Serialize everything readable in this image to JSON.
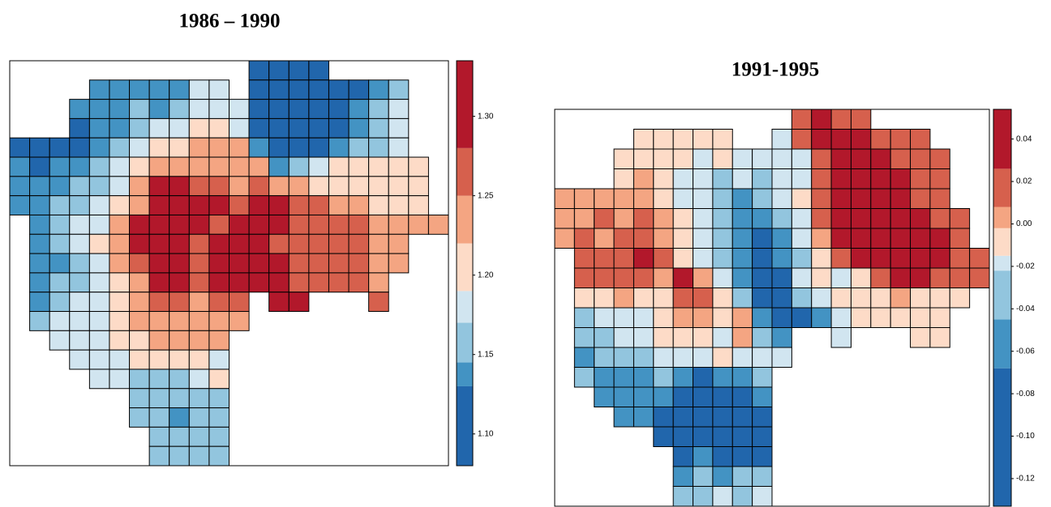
{
  "chart_data": [
    {
      "type": "raster",
      "title": "1986 – 1990",
      "breaks": [
        1.08,
        1.13,
        1.145,
        1.17,
        1.19,
        1.22,
        1.25,
        1.28,
        1.335
      ],
      "colors": [
        "#2166ac",
        "#4393c3",
        "#92c5de",
        "#d1e5f0",
        "#fddbc7",
        "#f4a582",
        "#d6604d",
        "#b2182b"
      ],
      "ticks": [
        {
          "value": 1.1,
          "label": "1.10"
        },
        1.15,
        {
          "value": 1.2,
          "label": "1.20"
        },
        1.25,
        {
          "value": 1.3,
          "label": "1.30"
        }
      ],
      "cells": [
        [
          null,
          null,
          null,
          null,
          null,
          null,
          null,
          null,
          null,
          null,
          null,
          null,
          0,
          0,
          0,
          0,
          null,
          null,
          null,
          null,
          null,
          null
        ],
        [
          null,
          null,
          null,
          null,
          1,
          1,
          1,
          1,
          1,
          3,
          3,
          null,
          0,
          0,
          0,
          0,
          0,
          0,
          1,
          2,
          null,
          null
        ],
        [
          null,
          null,
          null,
          1,
          1,
          1,
          2,
          1,
          2,
          3,
          3,
          3,
          0,
          0,
          0,
          0,
          0,
          1,
          2,
          3,
          null,
          null
        ],
        [
          null,
          null,
          null,
          0,
          1,
          1,
          2,
          3,
          3,
          4,
          4,
          3,
          0,
          0,
          0,
          0,
          0,
          1,
          2,
          3,
          null,
          null
        ],
        [
          0,
          0,
          0,
          0,
          1,
          2,
          3,
          4,
          4,
          5,
          5,
          5,
          1,
          0,
          0,
          0,
          1,
          2,
          2,
          3,
          null,
          null
        ],
        [
          1,
          0,
          1,
          1,
          2,
          3,
          4,
          5,
          5,
          5,
          5,
          5,
          5,
          1,
          2,
          3,
          4,
          4,
          4,
          4,
          4,
          null
        ],
        [
          1,
          1,
          1,
          2,
          2,
          3,
          5,
          7,
          7,
          6,
          6,
          5,
          6,
          5,
          5,
          4,
          4,
          4,
          4,
          4,
          4,
          null
        ],
        [
          1,
          1,
          2,
          2,
          3,
          4,
          5,
          7,
          7,
          7,
          7,
          6,
          7,
          7,
          6,
          6,
          5,
          5,
          4,
          4,
          4,
          null
        ],
        [
          null,
          1,
          2,
          3,
          3,
          5,
          7,
          7,
          7,
          7,
          6,
          7,
          7,
          7,
          6,
          6,
          6,
          6,
          5,
          5,
          5,
          5
        ],
        [
          null,
          1,
          2,
          3,
          4,
          5,
          7,
          7,
          7,
          6,
          7,
          7,
          7,
          6,
          6,
          6,
          6,
          6,
          5,
          5,
          null,
          null
        ],
        [
          null,
          1,
          1,
          2,
          3,
          5,
          6,
          7,
          7,
          6,
          7,
          7,
          7,
          7,
          6,
          6,
          6,
          6,
          5,
          5,
          null,
          null
        ],
        [
          null,
          1,
          2,
          2,
          3,
          4,
          5,
          7,
          7,
          6,
          7,
          7,
          7,
          7,
          6,
          6,
          6,
          6,
          5,
          null,
          null,
          null
        ],
        [
          null,
          1,
          2,
          3,
          3,
          4,
          5,
          6,
          6,
          5,
          6,
          6,
          null,
          7,
          7,
          null,
          null,
          null,
          6,
          null,
          null,
          null
        ],
        [
          null,
          2,
          3,
          3,
          3,
          4,
          5,
          5,
          5,
          5,
          5,
          5,
          null,
          null,
          null,
          null,
          null,
          null,
          null,
          null,
          null,
          null
        ],
        [
          null,
          null,
          3,
          3,
          3,
          4,
          4,
          5,
          5,
          5,
          5,
          null,
          null,
          null,
          null,
          null,
          null,
          null,
          null,
          null,
          null,
          null
        ],
        [
          null,
          null,
          null,
          3,
          3,
          3,
          4,
          4,
          4,
          4,
          3,
          null,
          null,
          null,
          null,
          null,
          null,
          null,
          null,
          null,
          null,
          null
        ],
        [
          null,
          null,
          null,
          null,
          3,
          3,
          2,
          2,
          2,
          3,
          4,
          null,
          null,
          null,
          null,
          null,
          null,
          null,
          null,
          null,
          null,
          null
        ],
        [
          null,
          null,
          null,
          null,
          null,
          null,
          2,
          2,
          2,
          2,
          2,
          null,
          null,
          null,
          null,
          null,
          null,
          null,
          null,
          null,
          null,
          null
        ],
        [
          null,
          null,
          null,
          null,
          null,
          null,
          2,
          2,
          1,
          2,
          2,
          null,
          null,
          null,
          null,
          null,
          null,
          null,
          null,
          null,
          null,
          null
        ],
        [
          null,
          null,
          null,
          null,
          null,
          null,
          null,
          2,
          2,
          2,
          2,
          null,
          null,
          null,
          null,
          null,
          null,
          null,
          null,
          null,
          null,
          null
        ],
        [
          null,
          null,
          null,
          null,
          null,
          null,
          null,
          2,
          2,
          2,
          2,
          null,
          null,
          null,
          null,
          null,
          null,
          null,
          null,
          null,
          null,
          null
        ]
      ]
    },
    {
      "type": "raster",
      "title": "1991-1995",
      "breaks": [
        -0.133,
        -0.068,
        -0.045,
        -0.022,
        -0.015,
        -0.002,
        0.008,
        0.026,
        0.054
      ],
      "colors": [
        "#2166ac",
        "#4393c3",
        "#92c5de",
        "#d1e5f0",
        "#fddbc7",
        "#f4a582",
        "#d6604d",
        "#b2182b"
      ],
      "ticks": [
        -0.12,
        {
          "value": -0.1,
          "label": "-0.10"
        },
        -0.08,
        -0.06,
        -0.04,
        -0.02,
        {
          "value": 0,
          "label": "0.00"
        },
        0.02,
        0.04
      ],
      "cells": [
        [
          null,
          null,
          null,
          null,
          null,
          null,
          null,
          null,
          null,
          null,
          null,
          null,
          6,
          7,
          6,
          6,
          null,
          null,
          null,
          null,
          null,
          null
        ],
        [
          null,
          null,
          null,
          null,
          4,
          4,
          4,
          4,
          4,
          null,
          null,
          3,
          6,
          7,
          7,
          7,
          6,
          6,
          6,
          null,
          null,
          null
        ],
        [
          null,
          null,
          null,
          4,
          4,
          4,
          4,
          3,
          4,
          3,
          3,
          3,
          3,
          6,
          7,
          7,
          7,
          6,
          6,
          6,
          null,
          null
        ],
        [
          null,
          null,
          null,
          4,
          5,
          4,
          3,
          3,
          2,
          3,
          2,
          3,
          3,
          6,
          7,
          7,
          7,
          7,
          6,
          6,
          null,
          null
        ],
        [
          5,
          5,
          5,
          5,
          5,
          4,
          3,
          3,
          2,
          1,
          2,
          3,
          4,
          6,
          7,
          7,
          7,
          7,
          6,
          6,
          null,
          null
        ],
        [
          5,
          5,
          6,
          5,
          6,
          5,
          4,
          3,
          2,
          1,
          1,
          2,
          3,
          6,
          7,
          7,
          7,
          7,
          7,
          6,
          6,
          null
        ],
        [
          5,
          6,
          5,
          6,
          6,
          5,
          4,
          3,
          2,
          1,
          0,
          1,
          3,
          5,
          7,
          7,
          7,
          7,
          7,
          7,
          6,
          null
        ],
        [
          null,
          6,
          6,
          6,
          7,
          6,
          4,
          3,
          2,
          1,
          0,
          1,
          2,
          4,
          6,
          7,
          7,
          7,
          7,
          7,
          6,
          6
        ],
        [
          null,
          6,
          6,
          6,
          6,
          5,
          7,
          5,
          3,
          1,
          0,
          0,
          3,
          4,
          3,
          4,
          6,
          7,
          7,
          6,
          6,
          6
        ],
        [
          null,
          4,
          4,
          5,
          4,
          4,
          6,
          6,
          4,
          2,
          0,
          0,
          2,
          3,
          4,
          4,
          4,
          5,
          4,
          4,
          4,
          null
        ],
        [
          null,
          2,
          3,
          3,
          3,
          4,
          5,
          5,
          4,
          5,
          1,
          0,
          0,
          1,
          3,
          4,
          4,
          4,
          4,
          4,
          null,
          null
        ],
        [
          null,
          2,
          2,
          3,
          3,
          4,
          4,
          4,
          3,
          5,
          2,
          1,
          null,
          null,
          3,
          null,
          null,
          null,
          4,
          4,
          null,
          null
        ],
        [
          null,
          1,
          2,
          2,
          2,
          3,
          3,
          3,
          4,
          3,
          3,
          3,
          null,
          null,
          null,
          null,
          null,
          null,
          null,
          null,
          null,
          null
        ],
        [
          null,
          2,
          1,
          1,
          1,
          2,
          1,
          0,
          1,
          1,
          2,
          null,
          null,
          null,
          null,
          null,
          null,
          null,
          null,
          null,
          null,
          null
        ],
        [
          null,
          null,
          1,
          1,
          1,
          1,
          0,
          0,
          0,
          0,
          1,
          null,
          null,
          null,
          null,
          null,
          null,
          null,
          null,
          null,
          null,
          null
        ],
        [
          null,
          null,
          null,
          1,
          1,
          0,
          0,
          0,
          0,
          0,
          0,
          null,
          null,
          null,
          null,
          null,
          null,
          null,
          null,
          null,
          null,
          null
        ],
        [
          null,
          null,
          null,
          null,
          null,
          0,
          0,
          0,
          0,
          0,
          0,
          null,
          null,
          null,
          null,
          null,
          null,
          null,
          null,
          null,
          null,
          null
        ],
        [
          null,
          null,
          null,
          null,
          null,
          null,
          0,
          1,
          0,
          0,
          0,
          null,
          null,
          null,
          null,
          null,
          null,
          null,
          null,
          null,
          null,
          null
        ],
        [
          null,
          null,
          null,
          null,
          null,
          null,
          1,
          2,
          1,
          2,
          2,
          null,
          null,
          null,
          null,
          null,
          null,
          null,
          null,
          null,
          null,
          null
        ],
        [
          null,
          null,
          null,
          null,
          null,
          null,
          2,
          2,
          3,
          2,
          3,
          null,
          null,
          null,
          null,
          null,
          null,
          null,
          null,
          null,
          null,
          null
        ]
      ]
    }
  ]
}
